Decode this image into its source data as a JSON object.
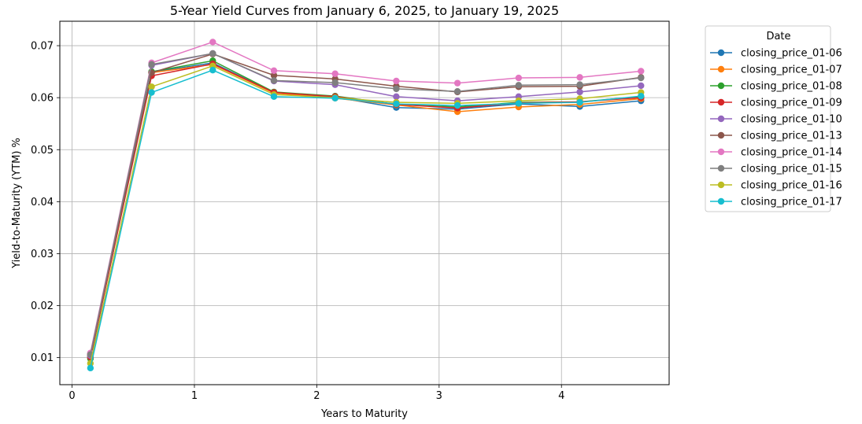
{
  "chart_data": {
    "type": "line",
    "title": "5-Year Yield Curves from January 6, 2025, to January 19, 2025",
    "xlabel": "Years to Maturity",
    "ylabel": "Yield-to-Maturity (YTM) %",
    "xlim": [
      -0.1,
      4.88
    ],
    "ylim": [
      0.0048,
      0.0747
    ],
    "xticks": [
      0,
      1,
      2,
      3,
      4
    ],
    "yticks": [
      0.01,
      0.02,
      0.03,
      0.04,
      0.05,
      0.06,
      0.07
    ],
    "grid": true,
    "legend": {
      "title": "Date",
      "position": "outside-top-right"
    },
    "x": [
      0.15,
      0.65,
      1.15,
      1.65,
      2.15,
      2.65,
      3.15,
      3.65,
      4.15,
      4.65
    ],
    "series": [
      {
        "name": "closing_price_01-06",
        "color": "#1f77b4",
        "values": [
          0.0103,
          0.0649,
          0.0667,
          0.061,
          0.0601,
          0.0581,
          0.0578,
          0.0588,
          0.0583,
          0.0594
        ]
      },
      {
        "name": "closing_price_01-07",
        "color": "#ff7f0e",
        "values": [
          0.0105,
          0.0648,
          0.0664,
          0.0609,
          0.0599,
          0.0586,
          0.0573,
          0.0582,
          0.0587,
          0.0598
        ]
      },
      {
        "name": "closing_price_01-08",
        "color": "#2ca02c",
        "values": [
          0.0098,
          0.065,
          0.0671,
          0.0611,
          0.0603,
          0.0587,
          0.0582,
          0.0591,
          0.0592,
          0.0602
        ]
      },
      {
        "name": "closing_price_01-09",
        "color": "#d62728",
        "values": [
          0.0101,
          0.0642,
          0.0665,
          0.061,
          0.0602,
          0.0587,
          0.058,
          0.059,
          0.0592,
          0.06
        ]
      },
      {
        "name": "closing_price_01-10",
        "color": "#9467bd",
        "values": [
          0.0104,
          0.0662,
          0.0685,
          0.0632,
          0.0625,
          0.0602,
          0.0594,
          0.0602,
          0.0611,
          0.0623
        ]
      },
      {
        "name": "closing_price_01-13",
        "color": "#8c564b",
        "values": [
          0.0107,
          0.0648,
          0.0684,
          0.0643,
          0.0636,
          0.0622,
          0.0611,
          0.0621,
          0.0622,
          0.0639
        ]
      },
      {
        "name": "closing_price_01-14",
        "color": "#e377c2",
        "values": [
          0.0109,
          0.0667,
          0.0707,
          0.0652,
          0.0646,
          0.0632,
          0.0628,
          0.0638,
          0.0639,
          0.0651
        ]
      },
      {
        "name": "closing_price_01-15",
        "color": "#7f7f7f",
        "values": [
          0.0106,
          0.0664,
          0.0685,
          0.0633,
          0.0629,
          0.0617,
          0.0612,
          0.0624,
          0.0625,
          0.0638
        ]
      },
      {
        "name": "closing_price_01-16",
        "color": "#bcbd22",
        "values": [
          0.0089,
          0.0621,
          0.0661,
          0.0606,
          0.06,
          0.0591,
          0.0589,
          0.0594,
          0.0598,
          0.061
        ]
      },
      {
        "name": "closing_price_01-17",
        "color": "#17becf",
        "values": [
          0.008,
          0.061,
          0.0653,
          0.0602,
          0.0599,
          0.0588,
          0.0585,
          0.0589,
          0.0591,
          0.0603
        ]
      }
    ]
  }
}
